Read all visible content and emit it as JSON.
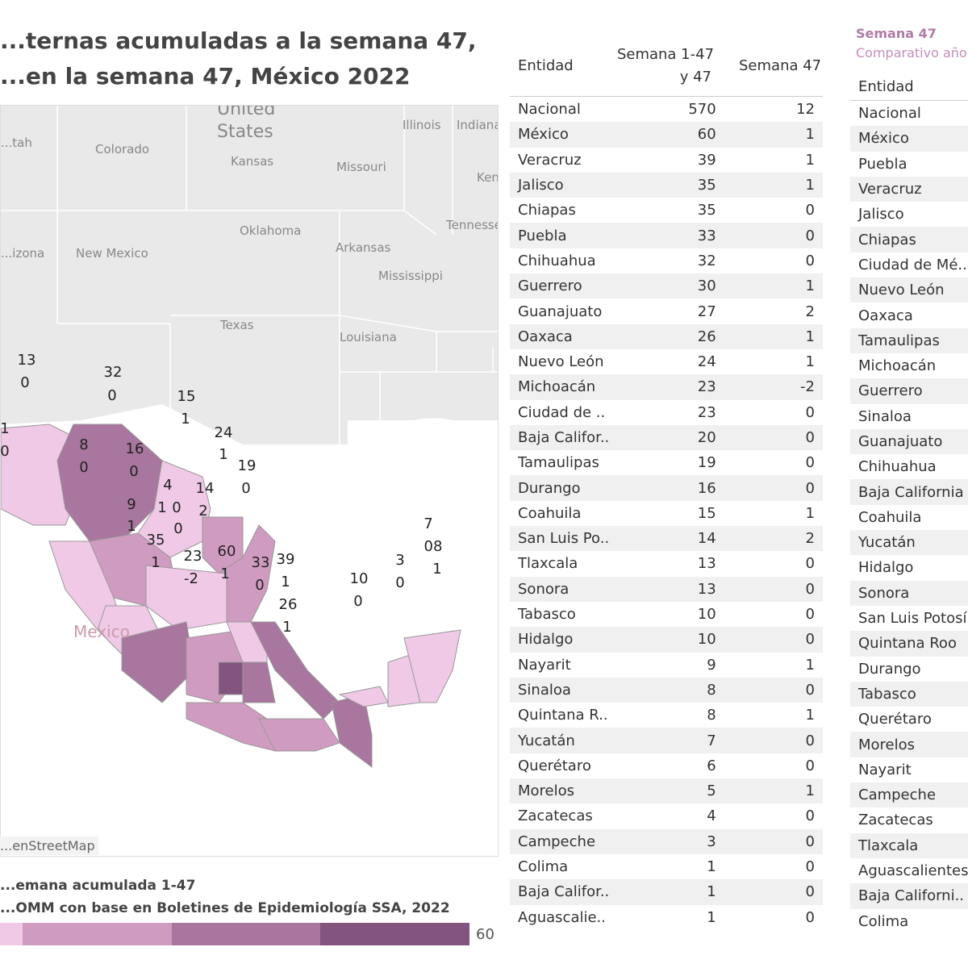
{
  "title": {
    "line1": "...ternas acumuladas a la semana 47,",
    "line2": "...en la semana 47, México 2022"
  },
  "map": {
    "geo_labels": [
      "United",
      "States",
      "Illinois",
      "Indiana",
      "Colorado",
      "Kansas",
      "Missouri",
      "Ken",
      "...tah",
      "Oklahoma",
      "Tennesse",
      "...izona",
      "New Mexico",
      "Arkansas",
      "Mississippi",
      "Texas",
      "Louisiana",
      "Mexico"
    ],
    "state_values": [
      "13",
      "0",
      "32",
      "0",
      "15",
      "1",
      "1",
      "0",
      "8",
      "0",
      "16",
      "0",
      "24",
      "1",
      "19",
      "0",
      "4",
      "0",
      "1",
      "14",
      "2",
      "9",
      "1",
      "0",
      "35",
      "1",
      "23",
      "-2",
      "60",
      "1",
      "33",
      "0",
      "39",
      "1",
      "26",
      "1",
      "10",
      "0",
      "3",
      "0",
      "7",
      "08",
      "1"
    ],
    "attribution": "...enStreetMap",
    "colors": [
      "#efc9e6",
      "#d09bc0",
      "#a8769e",
      "#82547e"
    ]
  },
  "legend": {
    "line1": "...emana acumulada 1-47",
    "line2": "...OMM con base en Boletines de Epidemiología SSA, 2022",
    "max": "60"
  },
  "table1": {
    "headers": {
      "entity": "Entidad",
      "cum_a": "Semana 1-47",
      "cum_b": "y 47",
      "week": "Semana 47"
    },
    "rows": [
      [
        "Nacional",
        "570",
        "12"
      ],
      [
        "México",
        "60",
        "1"
      ],
      [
        "Veracruz",
        "39",
        "1"
      ],
      [
        "Jalisco",
        "35",
        "1"
      ],
      [
        "Chiapas",
        "35",
        "0"
      ],
      [
        "Puebla",
        "33",
        "0"
      ],
      [
        "Chihuahua",
        "32",
        "0"
      ],
      [
        "Guerrero",
        "30",
        "1"
      ],
      [
        "Guanajuato",
        "27",
        "2"
      ],
      [
        "Oaxaca",
        "26",
        "1"
      ],
      [
        "Nuevo León",
        "24",
        "1"
      ],
      [
        "Michoacán",
        "23",
        "-2"
      ],
      [
        "Ciudad de ..",
        "23",
        "0"
      ],
      [
        "Baja Califor..",
        "20",
        "0"
      ],
      [
        "Tamaulipas",
        "19",
        "0"
      ],
      [
        "Durango",
        "16",
        "0"
      ],
      [
        "Coahuila",
        "15",
        "1"
      ],
      [
        "San Luis Po..",
        "14",
        "2"
      ],
      [
        "Tlaxcala",
        "13",
        "0"
      ],
      [
        "Sonora",
        "13",
        "0"
      ],
      [
        "Tabasco",
        "10",
        "0"
      ],
      [
        "Hidalgo",
        "10",
        "0"
      ],
      [
        "Nayarit",
        "9",
        "1"
      ],
      [
        "Sinaloa",
        "8",
        "0"
      ],
      [
        "Quintana R..",
        "8",
        "1"
      ],
      [
        "Yucatán",
        "7",
        "0"
      ],
      [
        "Querétaro",
        "6",
        "0"
      ],
      [
        "Morelos",
        "5",
        "1"
      ],
      [
        "Zacatecas",
        "4",
        "0"
      ],
      [
        "Campeche",
        "3",
        "0"
      ],
      [
        "Colima",
        "1",
        "0"
      ],
      [
        "Baja Califor..",
        "1",
        "0"
      ],
      [
        "Aguascalie..",
        "1",
        "0"
      ]
    ]
  },
  "table2": {
    "title": "Semana 47",
    "subtitle": "Comparativo año",
    "header": "Entidad",
    "rows": [
      "Nacional",
      "México",
      "Puebla",
      "Veracruz",
      "Jalisco",
      "Chiapas",
      "Ciudad de Mé..",
      "Nuevo León",
      "Oaxaca",
      "Tamaulipas",
      "Michoacán",
      "Guerrero",
      "Sinaloa",
      "Guanajuato",
      "Chihuahua",
      "Baja California",
      "Coahuila",
      "Yucatán",
      "Hidalgo",
      "Sonora",
      "San Luis Potosí",
      "Quintana Roo",
      "Durango",
      "Tabasco",
      "Querétaro",
      "Morelos",
      "Nayarit",
      "Campeche",
      "Zacatecas",
      "Tlaxcala",
      "Aguascalientes",
      "Baja Californi..",
      "Colima"
    ]
  }
}
